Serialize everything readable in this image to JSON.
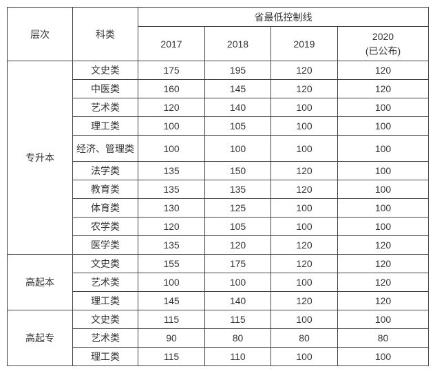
{
  "colors": {
    "border": "#434343",
    "text": "#333333",
    "background": "#ffffff"
  },
  "chart_data": {
    "type": "table",
    "title": "省最低控制线",
    "header": {
      "level": "层次",
      "category": "科类",
      "group_title": "省最低控制线",
      "years": [
        "2017",
        "2018",
        "2019"
      ],
      "year_2020_line1": "2020",
      "year_2020_line2": "(已公布)"
    },
    "groups": [
      {
        "level": "专升本",
        "rows": [
          {
            "category": "文史类",
            "values": [
              175,
              195,
              120,
              120
            ]
          },
          {
            "category": "中医类",
            "values": [
              160,
              145,
              120,
              120
            ]
          },
          {
            "category": "艺术类",
            "values": [
              120,
              140,
              100,
              100
            ]
          },
          {
            "category": "理工类",
            "values": [
              100,
              105,
              100,
              100
            ]
          },
          {
            "category": "经济、管理类",
            "values": [
              100,
              100,
              100,
              100
            ]
          },
          {
            "category": "法学类",
            "values": [
              135,
              150,
              120,
              100
            ]
          },
          {
            "category": "教育类",
            "values": [
              135,
              135,
              120,
              100
            ]
          },
          {
            "category": "体育类",
            "values": [
              130,
              125,
              100,
              100
            ]
          },
          {
            "category": "农学类",
            "values": [
              120,
              105,
              100,
              100
            ]
          },
          {
            "category": "医学类",
            "values": [
              135,
              120,
              120,
              120
            ]
          }
        ]
      },
      {
        "level": "高起本",
        "rows": [
          {
            "category": "文史类",
            "values": [
              155,
              175,
              120,
              120
            ]
          },
          {
            "category": "艺术类",
            "values": [
              100,
              100,
              100,
              120
            ]
          },
          {
            "category": "理工类",
            "values": [
              145,
              140,
              120,
              120
            ]
          }
        ]
      },
      {
        "level": "高起专",
        "rows": [
          {
            "category": "文史类",
            "values": [
              115,
              115,
              100,
              100
            ]
          },
          {
            "category": "艺术类",
            "values": [
              90,
              80,
              80,
              80
            ]
          },
          {
            "category": "理工类",
            "values": [
              115,
              110,
              100,
              100
            ]
          }
        ]
      }
    ]
  }
}
